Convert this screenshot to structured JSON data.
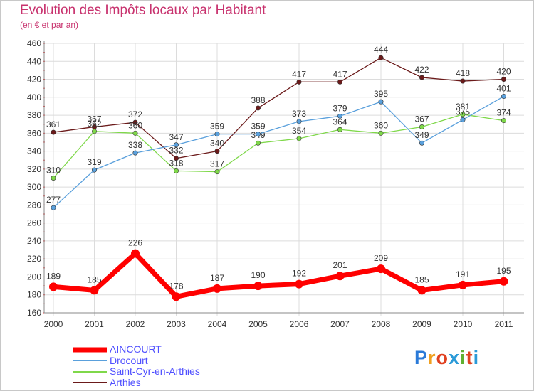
{
  "title": "Evolution des Impôts locaux par Habitant",
  "subtitle": "(en € et par an)",
  "logo": {
    "text": "Proxiti",
    "colors": [
      "#2a7ad8",
      "#f0a020",
      "#e04020",
      "#2a9ad8",
      "#60b030",
      "#e04020",
      "#2a9ad8"
    ]
  },
  "chart_data": {
    "type": "line",
    "x": [
      "2000",
      "2001",
      "2002",
      "2003",
      "2004",
      "2005",
      "2006",
      "2007",
      "2008",
      "2009",
      "2010",
      "2011"
    ],
    "ylim": [
      160,
      460
    ],
    "yticks": [
      160,
      180,
      200,
      220,
      240,
      260,
      280,
      300,
      320,
      340,
      360,
      380,
      400,
      420,
      440,
      460
    ],
    "grid": true,
    "legend_position": "bottom-left",
    "series": [
      {
        "name": "Arthies",
        "color": "#6b1a1a",
        "values": [
          361,
          367,
          372,
          332,
          340,
          388,
          417,
          417,
          444,
          422,
          418,
          420
        ]
      },
      {
        "name": "Saint-Cyr-en-Arthies",
        "color": "#7fd84a",
        "values": [
          310,
          362,
          360,
          318,
          317,
          349,
          354,
          364,
          360,
          367,
          381,
          374
        ]
      },
      {
        "name": "Drocourt",
        "color": "#5aa0dc",
        "values": [
          277,
          319,
          338,
          347,
          359,
          359,
          373,
          379,
          395,
          349,
          375,
          401
        ]
      },
      {
        "name": "AINCOURT",
        "color": "#ff0000",
        "values": [
          189,
          185,
          226,
          178,
          187,
          190,
          192,
          201,
          209,
          185,
          191,
          195
        ]
      }
    ],
    "legend_order": [
      "AINCOURT",
      "Drocourt",
      "Saint-Cyr-en-Arthies",
      "Arthies"
    ]
  }
}
